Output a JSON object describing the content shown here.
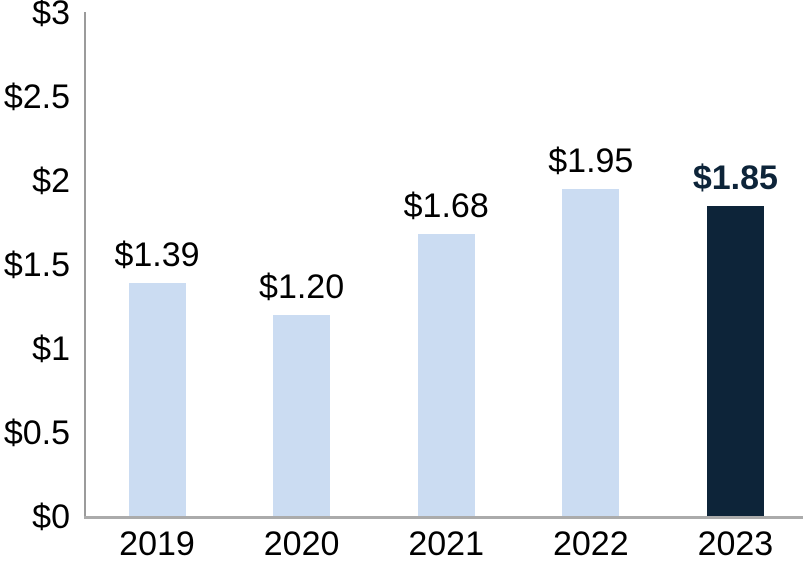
{
  "chart_data": {
    "type": "bar",
    "title": "",
    "categories": [
      "2019",
      "2020",
      "2021",
      "2022",
      "2023"
    ],
    "values": [
      1.39,
      1.2,
      1.68,
      1.95,
      1.85
    ],
    "bar_labels": [
      "$1.39",
      "$1.20",
      "$1.68",
      "$1.95",
      "$1.85"
    ],
    "y_ticks": {
      "values": [
        0,
        0.5,
        1,
        1.5,
        2,
        2.5,
        3
      ],
      "labels": [
        "$0",
        "$0.5",
        "$1",
        "$1.5",
        "$2",
        "$2.5",
        "$3"
      ]
    },
    "ylim": [
      0,
      3
    ],
    "xlabel": "",
    "ylabel": "",
    "grid": false,
    "legend": null,
    "highlight_index": 4,
    "highlight_label_bold": true,
    "colors": {
      "bar": "#CBDCF2",
      "highlight_bar": "#0D2439",
      "highlight_label": "#0D2439",
      "label_text": "#000000",
      "y_axis_line": "#9B9B9B",
      "x_axis_line": "#ABABAB"
    }
  }
}
